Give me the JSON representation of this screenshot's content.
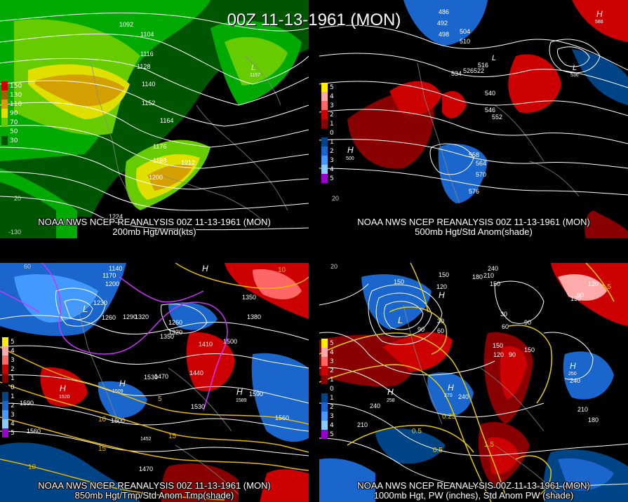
{
  "header": {
    "title": "00Z 11-13-1961 (MON)"
  },
  "panels": {
    "top_left": {
      "line1": "NOAA NWS NCEP REANALYSIS 00Z 11-13-1961 (MON)",
      "line2": "200mb Hgt/Wnd(kts)",
      "legend": [
        "150",
        "130",
        "110",
        "90",
        "70",
        "50",
        "30"
      ],
      "legend_colors": [
        "#cc0000",
        "#996600",
        "#d4a000",
        "#e0e000",
        "#66cc00",
        "#00aa00",
        "#005500"
      ],
      "contour_labels": [
        "1092",
        "1104",
        "1116",
        "1128",
        "1140",
        "1152",
        "1164",
        "1176",
        "1188",
        "1200",
        "1212",
        "1224"
      ],
      "markers": [
        "L",
        "1157"
      ],
      "lon_labels": [
        "-130"
      ],
      "lat_labels": [
        "20"
      ]
    },
    "top_right": {
      "line1": "NOAA NWS NCEP REANALYSIS 00Z 11-13-1961 (MON)",
      "line2": "500mb Hgt/Std Anom(shade)",
      "legend": [
        "5",
        "4",
        "3",
        "2",
        "1",
        "0",
        "1",
        "2",
        "3",
        "4",
        "5"
      ],
      "legend_colors": [
        "#ffee00",
        "#ffaaaa",
        "#ff6666",
        "#cc0000",
        "#880000",
        "#000000",
        "#004488",
        "#1a66cc",
        "#4499ff",
        "#88ccff",
        "#9900cc"
      ],
      "contour_labels": [
        "486",
        "492",
        "498",
        "504",
        "510",
        "516",
        "522",
        "528",
        "534",
        "540",
        "546",
        "552",
        "558",
        "564",
        "570",
        "576"
      ],
      "markers": [
        "H",
        "500",
        "L",
        "536",
        "L",
        "H",
        "588"
      ],
      "lat_labels": [
        "20"
      ]
    },
    "bottom_left": {
      "line1": "NOAA NWS NCEP REANALYSIS 00Z 11-13-1961 (MON)",
      "line2": "850mb Hgt/Tmp/Std Anom Tmp(shade)",
      "contour_labels": [
        "1140",
        "1170",
        "1200",
        "1230",
        "1260",
        "1290",
        "1320",
        "1350",
        "1380",
        "1410",
        "1440",
        "1470",
        "1500",
        "1530",
        "1560",
        "1590"
      ],
      "temp_labels": [
        "-10",
        "-5",
        "0",
        "5",
        "10",
        "15"
      ],
      "markers": [
        "L",
        "H",
        "1520",
        "H",
        "1509",
        "H",
        "1589",
        "1452"
      ],
      "lat_labels": [
        "60"
      ]
    },
    "bottom_right": {
      "line1": "NOAA NWS NCEP REANALYSIS 00Z 11-13-1961 (MON)",
      "line2": "1000mb Hgt, PW (inches), Std Anom PW (shade)",
      "contour_labels": [
        "30",
        "60",
        "90",
        "120",
        "150",
        "180",
        "210",
        "240",
        "270"
      ],
      "pw_labels": [
        "0.25",
        "0.5",
        "1",
        "1.5"
      ],
      "markers": [
        "L",
        "H",
        "258",
        "H",
        "H",
        "250",
        "H",
        "270"
      ],
      "lat_labels": [
        "20"
      ]
    }
  }
}
